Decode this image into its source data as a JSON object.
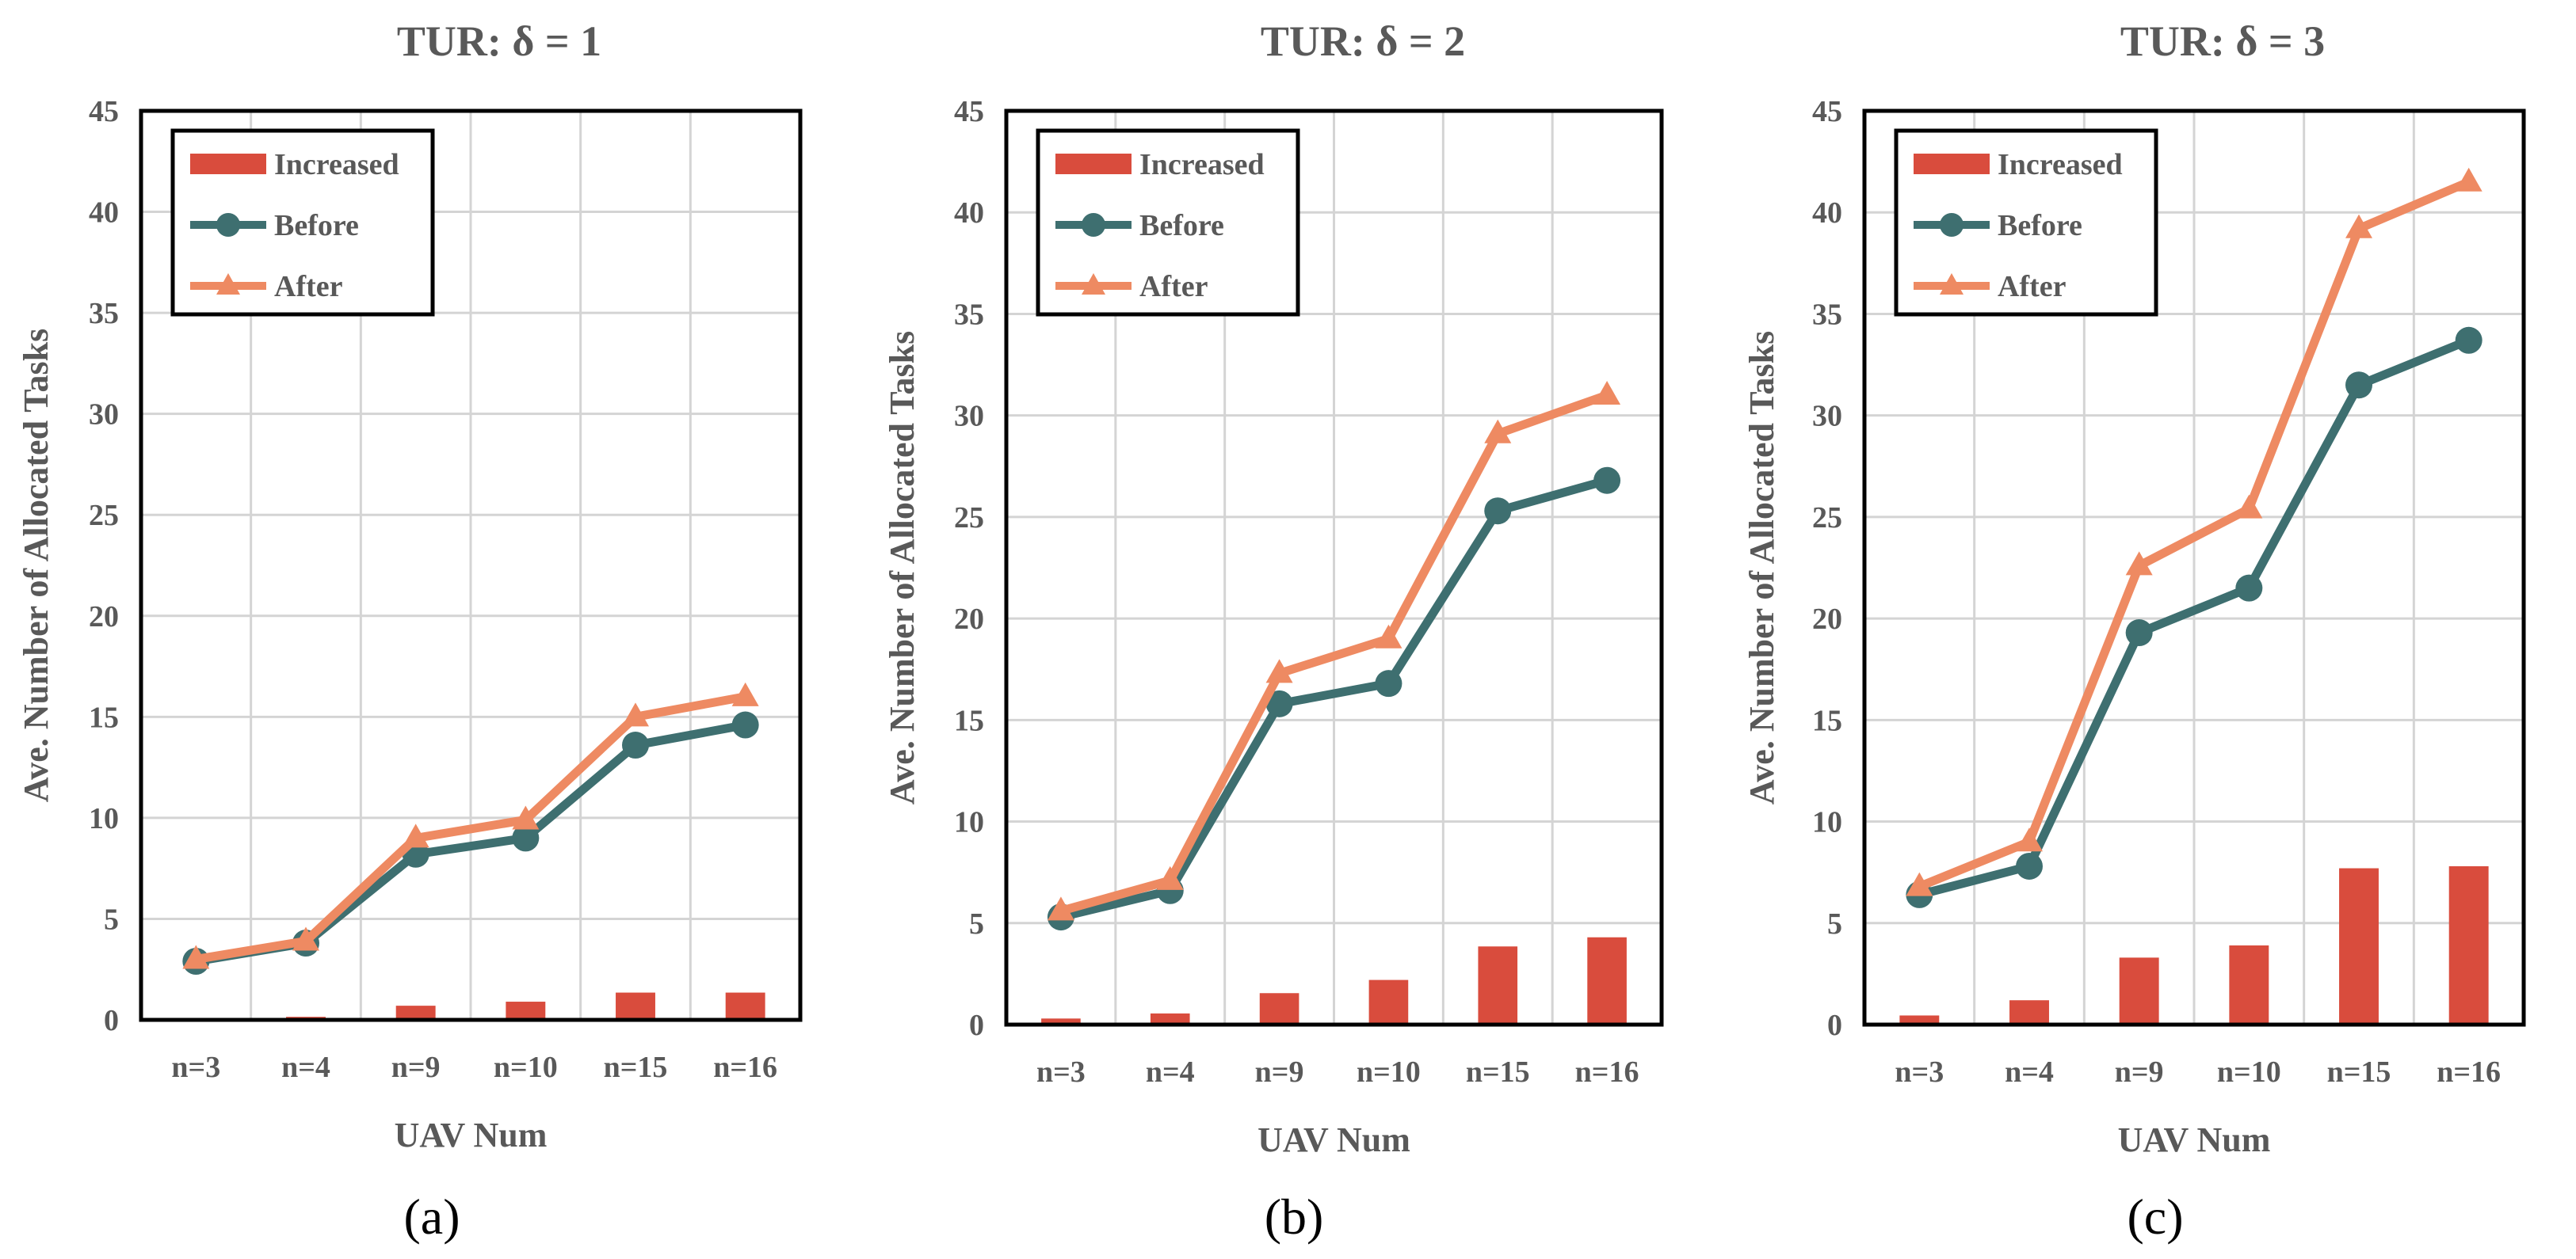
{
  "figure": {
    "colors": {
      "increased": "#d94c3d",
      "before": "#3e6f70",
      "after": "#ee8a62",
      "grid": "#d4d4d4",
      "axis": "#000000",
      "text": "#595959"
    }
  },
  "chart_data": [
    {
      "type": "bar+line",
      "panel_label": "(a)",
      "title": "TUR:  δ = 1",
      "xlabel": "UAV Num",
      "ylabel": "Ave. Number of Allocated Tasks",
      "ylim": [
        0,
        45
      ],
      "yticks": [
        0,
        5,
        10,
        15,
        20,
        25,
        30,
        35,
        40,
        45
      ],
      "categories": [
        "n=3",
        "n=4",
        "n=9",
        "n=10",
        "n=15",
        "n=16"
      ],
      "legend_position": "top-left",
      "series": [
        {
          "name": "Increased",
          "kind": "bar",
          "values": [
            0.05,
            0.15,
            0.7,
            0.9,
            1.35,
            1.35
          ]
        },
        {
          "name": "Before",
          "kind": "line-circle",
          "values": [
            2.9,
            3.8,
            8.2,
            9.0,
            13.6,
            14.6
          ]
        },
        {
          "name": "After",
          "kind": "line-triangle",
          "values": [
            3.0,
            3.9,
            9.0,
            9.9,
            15.0,
            16.0
          ]
        }
      ]
    },
    {
      "type": "bar+line",
      "panel_label": "(b)",
      "title": "TUR:  δ = 2",
      "xlabel": "UAV Num",
      "ylabel": "Ave. Number of Allocated Tasks",
      "ylim": [
        0,
        45
      ],
      "yticks": [
        0,
        5,
        10,
        15,
        20,
        25,
        30,
        35,
        40,
        45
      ],
      "categories": [
        "n=3",
        "n=4",
        "n=9",
        "n=10",
        "n=15",
        "n=16"
      ],
      "legend_position": "top-left",
      "series": [
        {
          "name": "Increased",
          "kind": "bar",
          "values": [
            0.3,
            0.55,
            1.55,
            2.2,
            3.85,
            4.3
          ]
        },
        {
          "name": "Before",
          "kind": "line-circle",
          "values": [
            5.3,
            6.6,
            15.8,
            16.8,
            25.3,
            26.8
          ]
        },
        {
          "name": "After",
          "kind": "line-triangle",
          "values": [
            5.6,
            7.1,
            17.3,
            19.0,
            29.1,
            31.0
          ]
        }
      ]
    },
    {
      "type": "bar+line",
      "panel_label": "(c)",
      "title": "TUR:  δ = 3",
      "xlabel": "UAV Num",
      "ylabel": "Ave. Number of Allocated Tasks",
      "ylim": [
        0,
        45
      ],
      "yticks": [
        0,
        5,
        10,
        15,
        20,
        25,
        30,
        35,
        40,
        45
      ],
      "categories": [
        "n=3",
        "n=4",
        "n=9",
        "n=10",
        "n=15",
        "n=16"
      ],
      "legend_position": "top-left",
      "series": [
        {
          "name": "Increased",
          "kind": "bar",
          "values": [
            0.45,
            1.2,
            3.3,
            3.9,
            7.7,
            7.8
          ]
        },
        {
          "name": "Before",
          "kind": "line-circle",
          "values": [
            6.4,
            7.8,
            19.3,
            21.5,
            31.5,
            33.7
          ]
        },
        {
          "name": "After",
          "kind": "line-triangle",
          "values": [
            6.8,
            9.0,
            22.6,
            25.4,
            39.2,
            41.5
          ]
        }
      ]
    }
  ]
}
